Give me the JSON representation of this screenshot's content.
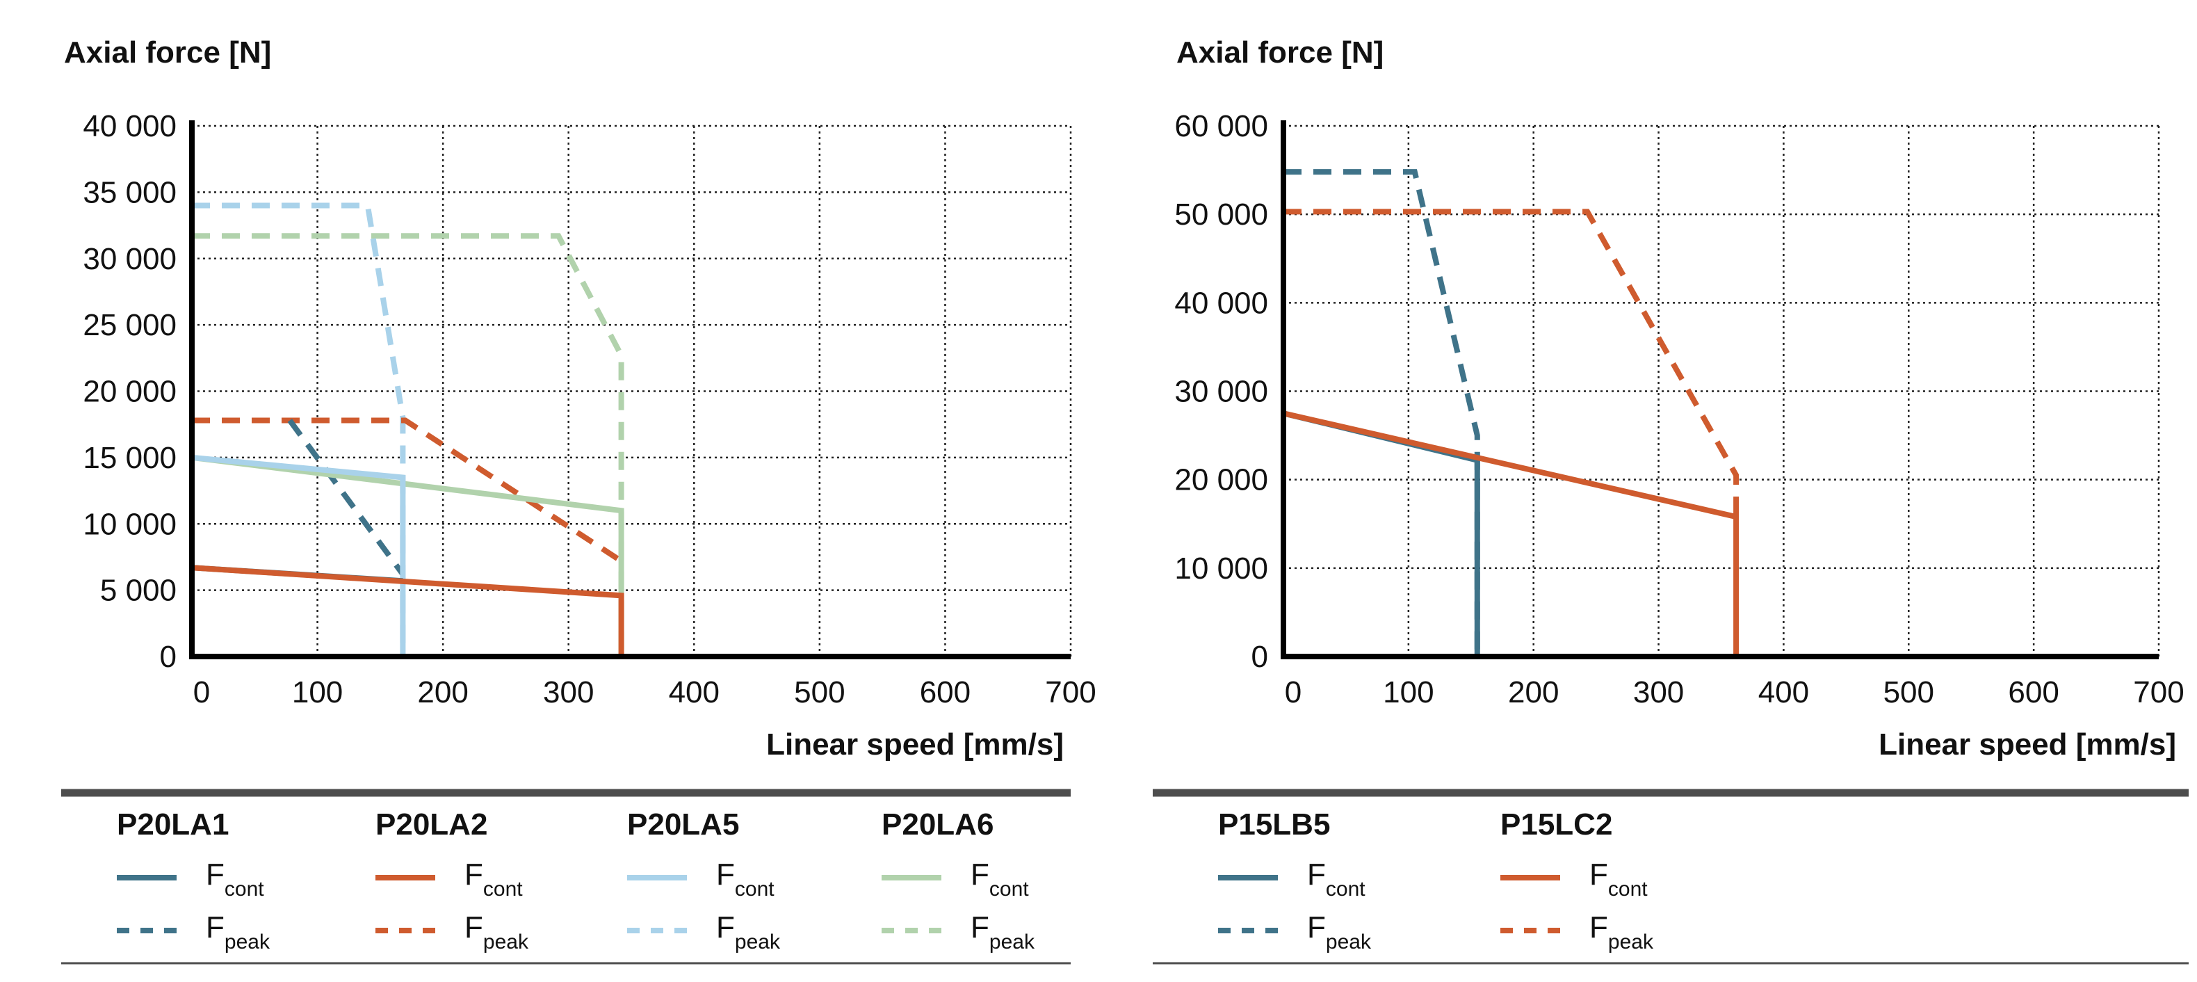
{
  "colors": {
    "P20LA1": "#3f7389",
    "P20LA2": "#cf5b2e",
    "P20LA5": "#a9d2ea",
    "P20LA6": "#b1d2ac",
    "P15LB5": "#3f7389",
    "P15LC2": "#cf5b2e"
  },
  "legend_symbol_main": "F",
  "legend_sub_cont": "cont",
  "legend_sub_peak": "peak",
  "chart_data": [
    {
      "type": "line",
      "ylabel": "Axial force [N]",
      "xlabel": "Linear speed [mm/s]",
      "xlim": [
        0,
        700
      ],
      "ylim": [
        0,
        40000
      ],
      "x_ticks": [
        0,
        100,
        200,
        300,
        400,
        500,
        600,
        700
      ],
      "x_tick_labels": [
        "0",
        "100",
        "200",
        "300",
        "400",
        "500",
        "600",
        "700"
      ],
      "y_ticks": [
        0,
        5000,
        10000,
        15000,
        20000,
        25000,
        30000,
        35000,
        40000
      ],
      "y_tick_labels": [
        "0",
        "5 000",
        "10 000",
        "15 000",
        "20 000",
        "25 000",
        "30 000",
        "35 000",
        "40 000"
      ],
      "grid": true,
      "legend_groups": [
        "P20LA1",
        "P20LA2",
        "P20LA5",
        "P20LA6"
      ],
      "series": [
        {
          "name": "P20LA6 F_peak",
          "group": "P20LA6",
          "kind": "peak",
          "x": [
            0,
            292,
            342,
            342
          ],
          "y": [
            31700,
            31700,
            22700,
            0
          ]
        },
        {
          "name": "P20LA5 F_peak",
          "group": "P20LA5",
          "kind": "peak",
          "x": [
            0,
            140,
            168,
            168
          ],
          "y": [
            34000,
            34000,
            18000,
            0
          ]
        },
        {
          "name": "P20LA2 F_peak",
          "group": "P20LA2",
          "kind": "peak",
          "x": [
            0,
            170,
            342
          ],
          "y": [
            17800,
            17800,
            7200
          ]
        },
        {
          "name": "P20LA1 F_peak",
          "group": "P20LA1",
          "kind": "peak",
          "x": [
            78,
            168
          ],
          "y": [
            17800,
            6200
          ]
        },
        {
          "name": "P20LA6 F_cont",
          "group": "P20LA6",
          "kind": "cont",
          "x": [
            0,
            342,
            342
          ],
          "y": [
            15000,
            11000,
            0
          ]
        },
        {
          "name": "P20LA5 F_cont",
          "group": "P20LA5",
          "kind": "cont",
          "x": [
            0,
            168,
            168
          ],
          "y": [
            15000,
            13500,
            0
          ]
        },
        {
          "name": "P20LA1 F_cont",
          "group": "P20LA1",
          "kind": "cont",
          "x": [
            0,
            168
          ],
          "y": [
            6700,
            5700
          ]
        },
        {
          "name": "P20LA2 F_cont",
          "group": "P20LA2",
          "kind": "cont",
          "x": [
            0,
            342,
            342
          ],
          "y": [
            6700,
            4600,
            0
          ]
        }
      ]
    },
    {
      "type": "line",
      "ylabel": "Axial force [N]",
      "xlabel": "Linear speed [mm/s]",
      "xlim": [
        0,
        700
      ],
      "ylim": [
        0,
        60000
      ],
      "x_ticks": [
        0,
        100,
        200,
        300,
        400,
        500,
        600,
        700
      ],
      "x_tick_labels": [
        "0",
        "100",
        "200",
        "300",
        "400",
        "500",
        "600",
        "700"
      ],
      "y_ticks": [
        0,
        10000,
        20000,
        30000,
        40000,
        50000,
        60000
      ],
      "y_tick_labels": [
        "0",
        "10 000",
        "20 000",
        "30 000",
        "40 000",
        "50 000",
        "60 000"
      ],
      "grid": true,
      "legend_groups": [
        "P15LB5",
        "P15LC2"
      ],
      "series": [
        {
          "name": "P15LC2 F_peak",
          "group": "P15LC2",
          "kind": "peak",
          "x": [
            0,
            243,
            362,
            362
          ],
          "y": [
            50300,
            50300,
            20500,
            16000
          ]
        },
        {
          "name": "P15LB5 F_peak",
          "group": "P15LB5",
          "kind": "peak",
          "x": [
            0,
            105,
            155,
            155
          ],
          "y": [
            54800,
            54800,
            25000,
            0
          ]
        },
        {
          "name": "P15LB5 F_cont",
          "group": "P15LB5",
          "kind": "cont",
          "x": [
            0,
            155,
            155
          ],
          "y": [
            27500,
            22200,
            0
          ]
        },
        {
          "name": "P15LC2 F_cont",
          "group": "P15LC2",
          "kind": "cont",
          "x": [
            0,
            362,
            362
          ],
          "y": [
            27500,
            15800,
            0
          ]
        }
      ]
    }
  ]
}
